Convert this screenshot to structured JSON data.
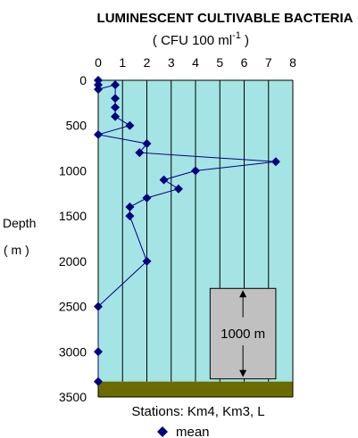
{
  "chart_data": {
    "type": "line",
    "title": "LUMINESCENT CULTIVABLE BACTERIA",
    "subtitle_main": "( CFU  100 ml",
    "subtitle_sup": "-1",
    "subtitle_end": " )",
    "ylabel_line1": "Depth",
    "ylabel_line2": "( m )",
    "xlim": [
      0,
      8
    ],
    "ylim": [
      0,
      3500
    ],
    "y_inverted": true,
    "x_ticks": [
      "0",
      "1",
      "2",
      "3",
      "4",
      "5",
      "6",
      "7",
      "8"
    ],
    "y_ticks": [
      "0",
      "500",
      "1000",
      "1500",
      "2000",
      "2500",
      "3000",
      "3500"
    ],
    "series": [
      {
        "name": "mean",
        "points": [
          {
            "x": 0.0,
            "y": 0
          },
          {
            "x": 0.0,
            "y": 50
          },
          {
            "x": 0.0,
            "y": 100
          },
          {
            "x": 0.7,
            "y": 50
          },
          {
            "x": 0.7,
            "y": 200
          },
          {
            "x": 0.7,
            "y": 300
          },
          {
            "x": 0.7,
            "y": 400
          },
          {
            "x": 1.3,
            "y": 500
          },
          {
            "x": 0.0,
            "y": 600
          },
          {
            "x": 2.0,
            "y": 700
          },
          {
            "x": 1.7,
            "y": 800
          },
          {
            "x": 7.3,
            "y": 900
          },
          {
            "x": 4.0,
            "y": 1000
          },
          {
            "x": 2.7,
            "y": 1100
          },
          {
            "x": 3.3,
            "y": 1200
          },
          {
            "x": 2.0,
            "y": 1300
          },
          {
            "x": 1.3,
            "y": 1400
          },
          {
            "x": 1.3,
            "y": 1500
          },
          {
            "x": 2.0,
            "y": 2000
          },
          {
            "x": 0.0,
            "y": 2500
          },
          {
            "x": 0.0,
            "y": 3000
          },
          {
            "x": 0.0,
            "y": 3330
          }
        ]
      }
    ],
    "grid": "vertical",
    "legend": {
      "position": "bottom",
      "label": "mean"
    },
    "footer": "Stations: Km4, Km3, L",
    "scale_bar_label": "1000 m",
    "colors": {
      "water": "#a4e4e4",
      "seabed": "#6b6b00",
      "series": "#000080",
      "scale_box": "#c0c0c0"
    }
  }
}
